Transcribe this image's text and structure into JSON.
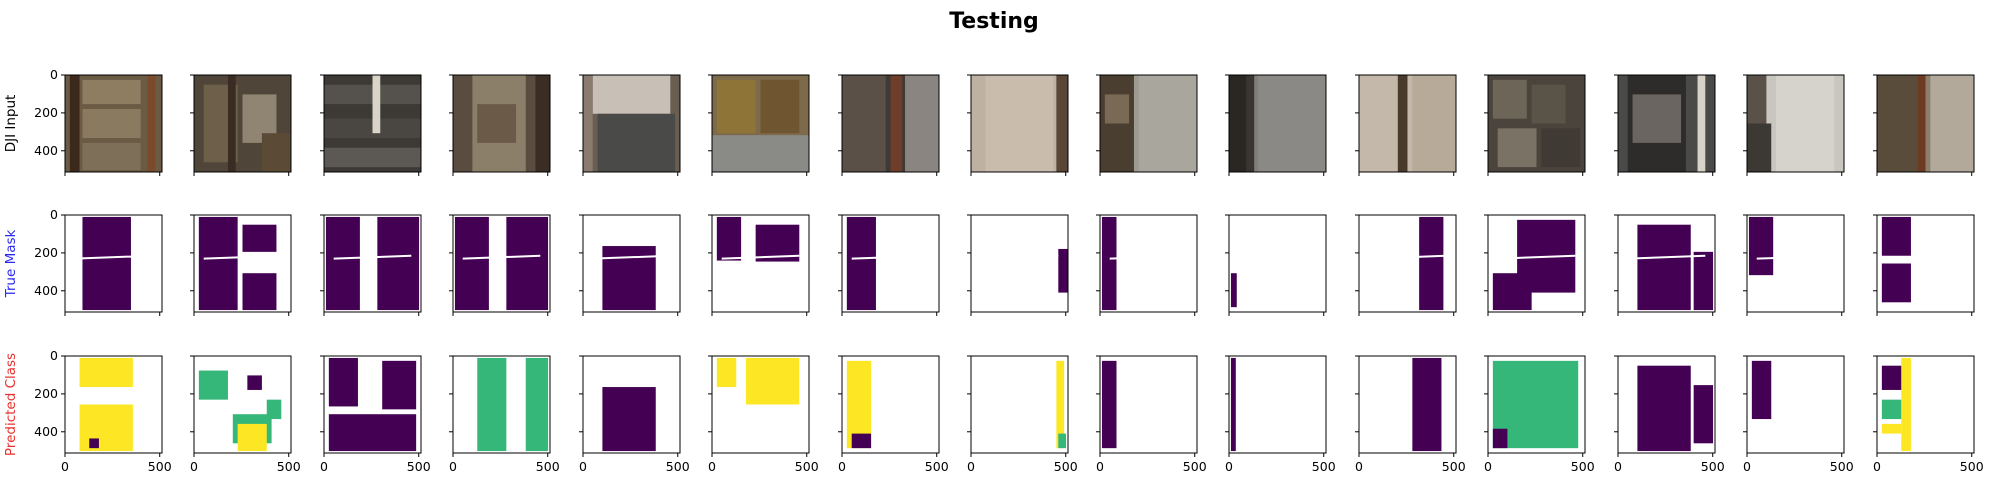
{
  "figure": {
    "title": "Testing",
    "row_labels": [
      {
        "text": "DJI Input",
        "color": "#000000"
      },
      {
        "text": "True Mask",
        "color": "#2b2bf0"
      },
      {
        "text": "Predicted Class",
        "color": "#e8302e"
      }
    ],
    "y_ticks": [
      "0",
      "200",
      "400"
    ],
    "x_ticks": [
      "0",
      "500"
    ],
    "columns": 15,
    "colors": {
      "purple": "#440154",
      "green": "#35b779",
      "yellow": "#fde725",
      "background": "#ffffff"
    },
    "panels_note": ""
  }
}
